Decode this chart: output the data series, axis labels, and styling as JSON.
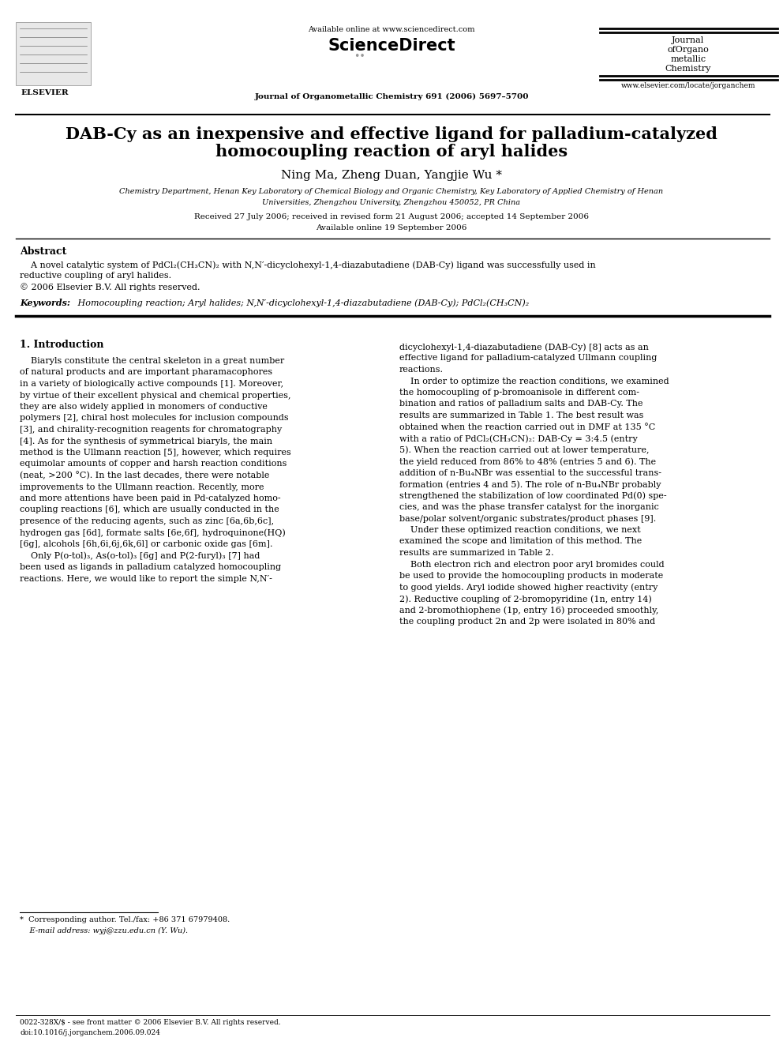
{
  "bg_color": "#ffffff",
  "page_width": 9.92,
  "page_height": 13.23,
  "dpi": 100,
  "header": {
    "available_online": "Available online at www.sciencedirect.com",
    "journal_name_center": "Journal of Organometallic Chemistry 691 (2006) 5697–5700",
    "journal_right_line1": "Journal",
    "journal_right_line2": "ofOrgano",
    "journal_right_line3": "metallic",
    "journal_right_line4": "Chemistry",
    "elsevier_label": "ELSEVIER",
    "website": "www.elsevier.com/locate/jorganchem",
    "sciencedirect_label": "ScienceDirect"
  },
  "title_line1": "DAB-Cy as an inexpensive and effective ligand for palladium-catalyzed",
  "title_line2": "homocoupling reaction of aryl halides",
  "authors": "Ning Ma, Zheng Duan, Yangjie Wu *",
  "affiliation_line1": "Chemistry Department, Henan Key Laboratory of Chemical Biology and Organic Chemistry, Key Laboratory of Applied Chemistry of Henan",
  "affiliation_line2": "Universities, Zhengzhou University, Zhengzhou 450052, PR China",
  "received_line1": "Received 27 July 2006; received in revised form 21 August 2006; accepted 14 September 2006",
  "received_line2": "Available online 19 September 2006",
  "abstract_title": "Abstract",
  "abstract_body_line1": "    A novel catalytic system of PdCl₂(CH₃CN)₂ with N,N′-dicyclohexyl-1,4-diazabutadiene (DAB-Cy) ligand was successfully used in",
  "abstract_body_line2": "reductive coupling of aryl halides.",
  "abstract_copyright": "© 2006 Elsevier B.V. All rights reserved.",
  "keywords_label": "Keywords: ",
  "keywords_text": " Homocoupling reaction; Aryl halides; N,N′-dicyclohexyl-1,4-diazabutadiene (DAB-Cy); PdCl₂(CH₃CN)₂",
  "section1_title": "1. Introduction",
  "col1_lines": [
    "    Biaryls constitute the central skeleton in a great number",
    "of natural products and are important pharamacophores",
    "in a variety of biologically active compounds [1]. Moreover,",
    "by virtue of their excellent physical and chemical properties,",
    "they are also widely applied in monomers of conductive",
    "polymers [2], chiral host molecules for inclusion compounds",
    "[3], and chirality-recognition reagents for chromatography",
    "[4]. As for the synthesis of symmetrical biaryls, the main",
    "method is the Ullmann reaction [5], however, which requires",
    "equimolar amounts of copper and harsh reaction conditions",
    "(neat, >200 °C). In the last decades, there were notable",
    "improvements to the Ullmann reaction. Recently, more",
    "and more attentions have been paid in Pd-catalyzed homo-",
    "coupling reactions [6], which are usually conducted in the",
    "presence of the reducing agents, such as zinc [6a,6b,6c],",
    "hydrogen gas [6d], formate salts [6e,6f], hydroquinone(HQ)",
    "[6g], alcohols [6h,6i,6j,6k,6l] or carbonic oxide gas [6m].",
    "    Only P(o-tol)₃, As(o-tol)₃ [6g] and P(2-furyl)₃ [7] had",
    "been used as ligands in palladium catalyzed homocoupling",
    "reactions. Here, we would like to report the simple N,N′-"
  ],
  "col2_lines": [
    "dicyclohexyl-1,4-diazabutadiene (DAB-Cy) [8] acts as an",
    "effective ligand for palladium-catalyzed Ullmann coupling",
    "reactions.",
    "    In order to optimize the reaction conditions, we examined",
    "the homocoupling of p-bromoanisole in different com-",
    "bination and ratios of palladium salts and DAB-Cy. The",
    "results are summarized in Table 1. The best result was",
    "obtained when the reaction carried out in DMF at 135 °C",
    "with a ratio of PdCl₂(CH₃CN)₂: DAB-Cy = 3:4.5 (entry",
    "5). When the reaction carried out at lower temperature,",
    "the yield reduced from 86% to 48% (entries 5 and 6). The",
    "addition of n-Bu₄NBr was essential to the successful trans-",
    "formation (entries 4 and 5). The role of n-Bu₄NBr probably",
    "strengthened the stabilization of low coordinated Pd(0) spe-",
    "cies, and was the phase transfer catalyst for the inorganic",
    "base/polar solvent/organic substrates/product phases [9].",
    "    Under these optimized reaction conditions, we next",
    "examined the scope and limitation of this method. The",
    "results are summarized in Table 2.",
    "    Both electron rich and electron poor aryl bromides could",
    "be used to provide the homocoupling products in moderate",
    "to good yields. Aryl iodide showed higher reactivity (entry",
    "2). Reductive coupling of 2-bromopyridine (1n, entry 14)",
    "and 2-bromothiophene (1p, entry 16) proceeded smoothly,",
    "the coupling product 2n and 2p were isolated in 80% and"
  ],
  "footnote_star": "*  Corresponding author. Tel./fax: +86 371 67979408.",
  "footnote_email": "    E-mail address: wyj@zzu.edu.cn (Y. Wu).",
  "footer_issn": "0022-328X/$ - see front matter © 2006 Elsevier B.V. All rights reserved.",
  "footer_doi": "doi:10.1016/j.jorganchem.2006.09.024",
  "link_color": "#000099"
}
